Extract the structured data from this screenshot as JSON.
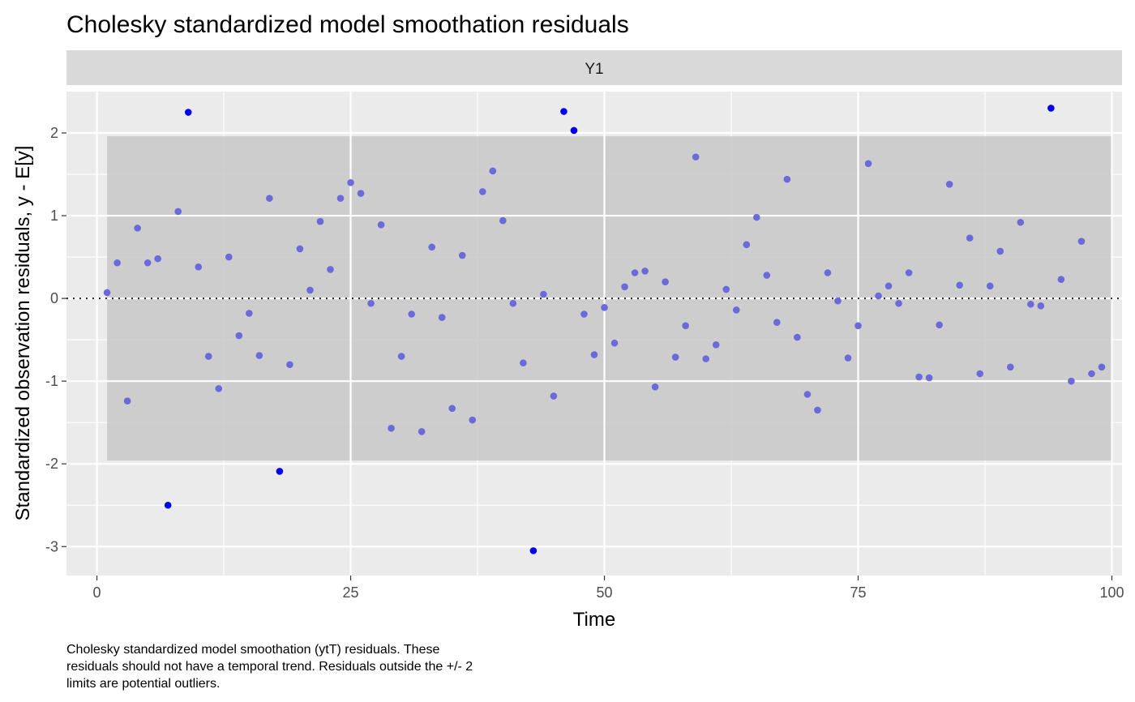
{
  "chart_data": {
    "type": "scatter",
    "title": "Cholesky standardized model smoothation residuals",
    "facet_label": "Y1",
    "xlabel": "Time",
    "ylabel": "Standardized observation residuals, y - E[y]",
    "caption": [
      "Cholesky standardized model smoothation (ytT) residuals. These",
      "residuals should not have a temporal trend. Residuals outside the +/- 2",
      "limits are potential outliers."
    ],
    "xlim": [
      -3,
      101
    ],
    "ylim": [
      -3.35,
      2.5
    ],
    "x_ticks": [
      0,
      25,
      50,
      75,
      100
    ],
    "x_tick_labels": [
      "0",
      "25",
      "50",
      "75",
      "100"
    ],
    "y_ticks": [
      -3,
      -2,
      -1,
      0,
      1,
      2
    ],
    "y_tick_labels": [
      "-3",
      "-2",
      "-1",
      "0",
      "1",
      "2"
    ],
    "band": {
      "x_from": 1,
      "x_to": 100,
      "y_from": -1.96,
      "y_to": 1.96
    },
    "reference_line_y": 0,
    "grid": true,
    "colors": {
      "panel_background": "#ebebeb",
      "band": "#c8c8c8",
      "strip_background": "#d9d9d9",
      "point": "#6a6ada",
      "outlier_point": "#0000ee",
      "reference_line": "#000000"
    },
    "points": [
      {
        "x": 1,
        "y": 0.07
      },
      {
        "x": 2,
        "y": 0.43
      },
      {
        "x": 3,
        "y": -1.24
      },
      {
        "x": 4,
        "y": 0.85
      },
      {
        "x": 5,
        "y": 0.43
      },
      {
        "x": 6,
        "y": 0.48
      },
      {
        "x": 7,
        "y": -2.5
      },
      {
        "x": 8,
        "y": 1.05
      },
      {
        "x": 9,
        "y": 2.25
      },
      {
        "x": 10,
        "y": 0.38
      },
      {
        "x": 11,
        "y": -0.7
      },
      {
        "x": 12,
        "y": -1.09
      },
      {
        "x": 13,
        "y": 0.5
      },
      {
        "x": 14,
        "y": -0.45
      },
      {
        "x": 15,
        "y": -0.18
      },
      {
        "x": 16,
        "y": -0.69
      },
      {
        "x": 17,
        "y": 1.21
      },
      {
        "x": 18,
        "y": -2.09
      },
      {
        "x": 19,
        "y": -0.8
      },
      {
        "x": 20,
        "y": 0.6
      },
      {
        "x": 21,
        "y": 0.1
      },
      {
        "x": 22,
        "y": 0.93
      },
      {
        "x": 23,
        "y": 0.35
      },
      {
        "x": 24,
        "y": 1.21
      },
      {
        "x": 25,
        "y": 1.4
      },
      {
        "x": 26,
        "y": 1.27
      },
      {
        "x": 27,
        "y": -0.06
      },
      {
        "x": 28,
        "y": 0.89
      },
      {
        "x": 29,
        "y": -1.57
      },
      {
        "x": 30,
        "y": -0.7
      },
      {
        "x": 31,
        "y": -0.19
      },
      {
        "x": 32,
        "y": -1.61
      },
      {
        "x": 33,
        "y": 0.62
      },
      {
        "x": 34,
        "y": -0.23
      },
      {
        "x": 35,
        "y": -1.33
      },
      {
        "x": 36,
        "y": 0.52
      },
      {
        "x": 37,
        "y": -1.47
      },
      {
        "x": 38,
        "y": 1.29
      },
      {
        "x": 39,
        "y": 1.54
      },
      {
        "x": 40,
        "y": 0.94
      },
      {
        "x": 41,
        "y": -0.06
      },
      {
        "x": 42,
        "y": -0.78
      },
      {
        "x": 43,
        "y": -3.05
      },
      {
        "x": 44,
        "y": 0.05
      },
      {
        "x": 45,
        "y": -1.18
      },
      {
        "x": 46,
        "y": 2.26
      },
      {
        "x": 47,
        "y": 2.03
      },
      {
        "x": 48,
        "y": -0.19
      },
      {
        "x": 49,
        "y": -0.68
      },
      {
        "x": 50,
        "y": -0.11
      },
      {
        "x": 51,
        "y": -0.54
      },
      {
        "x": 52,
        "y": 0.14
      },
      {
        "x": 53,
        "y": 0.31
      },
      {
        "x": 54,
        "y": 0.33
      },
      {
        "x": 55,
        "y": -1.07
      },
      {
        "x": 56,
        "y": 0.2
      },
      {
        "x": 57,
        "y": -0.71
      },
      {
        "x": 58,
        "y": -0.33
      },
      {
        "x": 59,
        "y": 1.71
      },
      {
        "x": 60,
        "y": -0.73
      },
      {
        "x": 61,
        "y": -0.56
      },
      {
        "x": 62,
        "y": 0.11
      },
      {
        "x": 63,
        "y": -0.14
      },
      {
        "x": 64,
        "y": 0.65
      },
      {
        "x": 65,
        "y": 0.98
      },
      {
        "x": 66,
        "y": 0.28
      },
      {
        "x": 67,
        "y": -0.29
      },
      {
        "x": 68,
        "y": 1.44
      },
      {
        "x": 69,
        "y": -0.47
      },
      {
        "x": 70,
        "y": -1.16
      },
      {
        "x": 71,
        "y": -1.35
      },
      {
        "x": 72,
        "y": 0.31
      },
      {
        "x": 73,
        "y": -0.03
      },
      {
        "x": 74,
        "y": -0.72
      },
      {
        "x": 75,
        "y": -0.33
      },
      {
        "x": 76,
        "y": 1.63
      },
      {
        "x": 77,
        "y": 0.03
      },
      {
        "x": 78,
        "y": 0.15
      },
      {
        "x": 79,
        "y": -0.06
      },
      {
        "x": 80,
        "y": 0.31
      },
      {
        "x": 81,
        "y": -0.95
      },
      {
        "x": 82,
        "y": -0.96
      },
      {
        "x": 83,
        "y": -0.32
      },
      {
        "x": 84,
        "y": 1.38
      },
      {
        "x": 85,
        "y": 0.16
      },
      {
        "x": 86,
        "y": 0.73
      },
      {
        "x": 87,
        "y": -0.91
      },
      {
        "x": 88,
        "y": 0.15
      },
      {
        "x": 89,
        "y": 0.57
      },
      {
        "x": 90,
        "y": -0.83
      },
      {
        "x": 91,
        "y": 0.92
      },
      {
        "x": 92,
        "y": -0.07
      },
      {
        "x": 93,
        "y": -0.09
      },
      {
        "x": 94,
        "y": 2.3
      },
      {
        "x": 95,
        "y": 0.23
      },
      {
        "x": 96,
        "y": -1.0
      },
      {
        "x": 97,
        "y": 0.69
      },
      {
        "x": 98,
        "y": -0.91
      },
      {
        "x": 99,
        "y": -0.83
      }
    ]
  }
}
